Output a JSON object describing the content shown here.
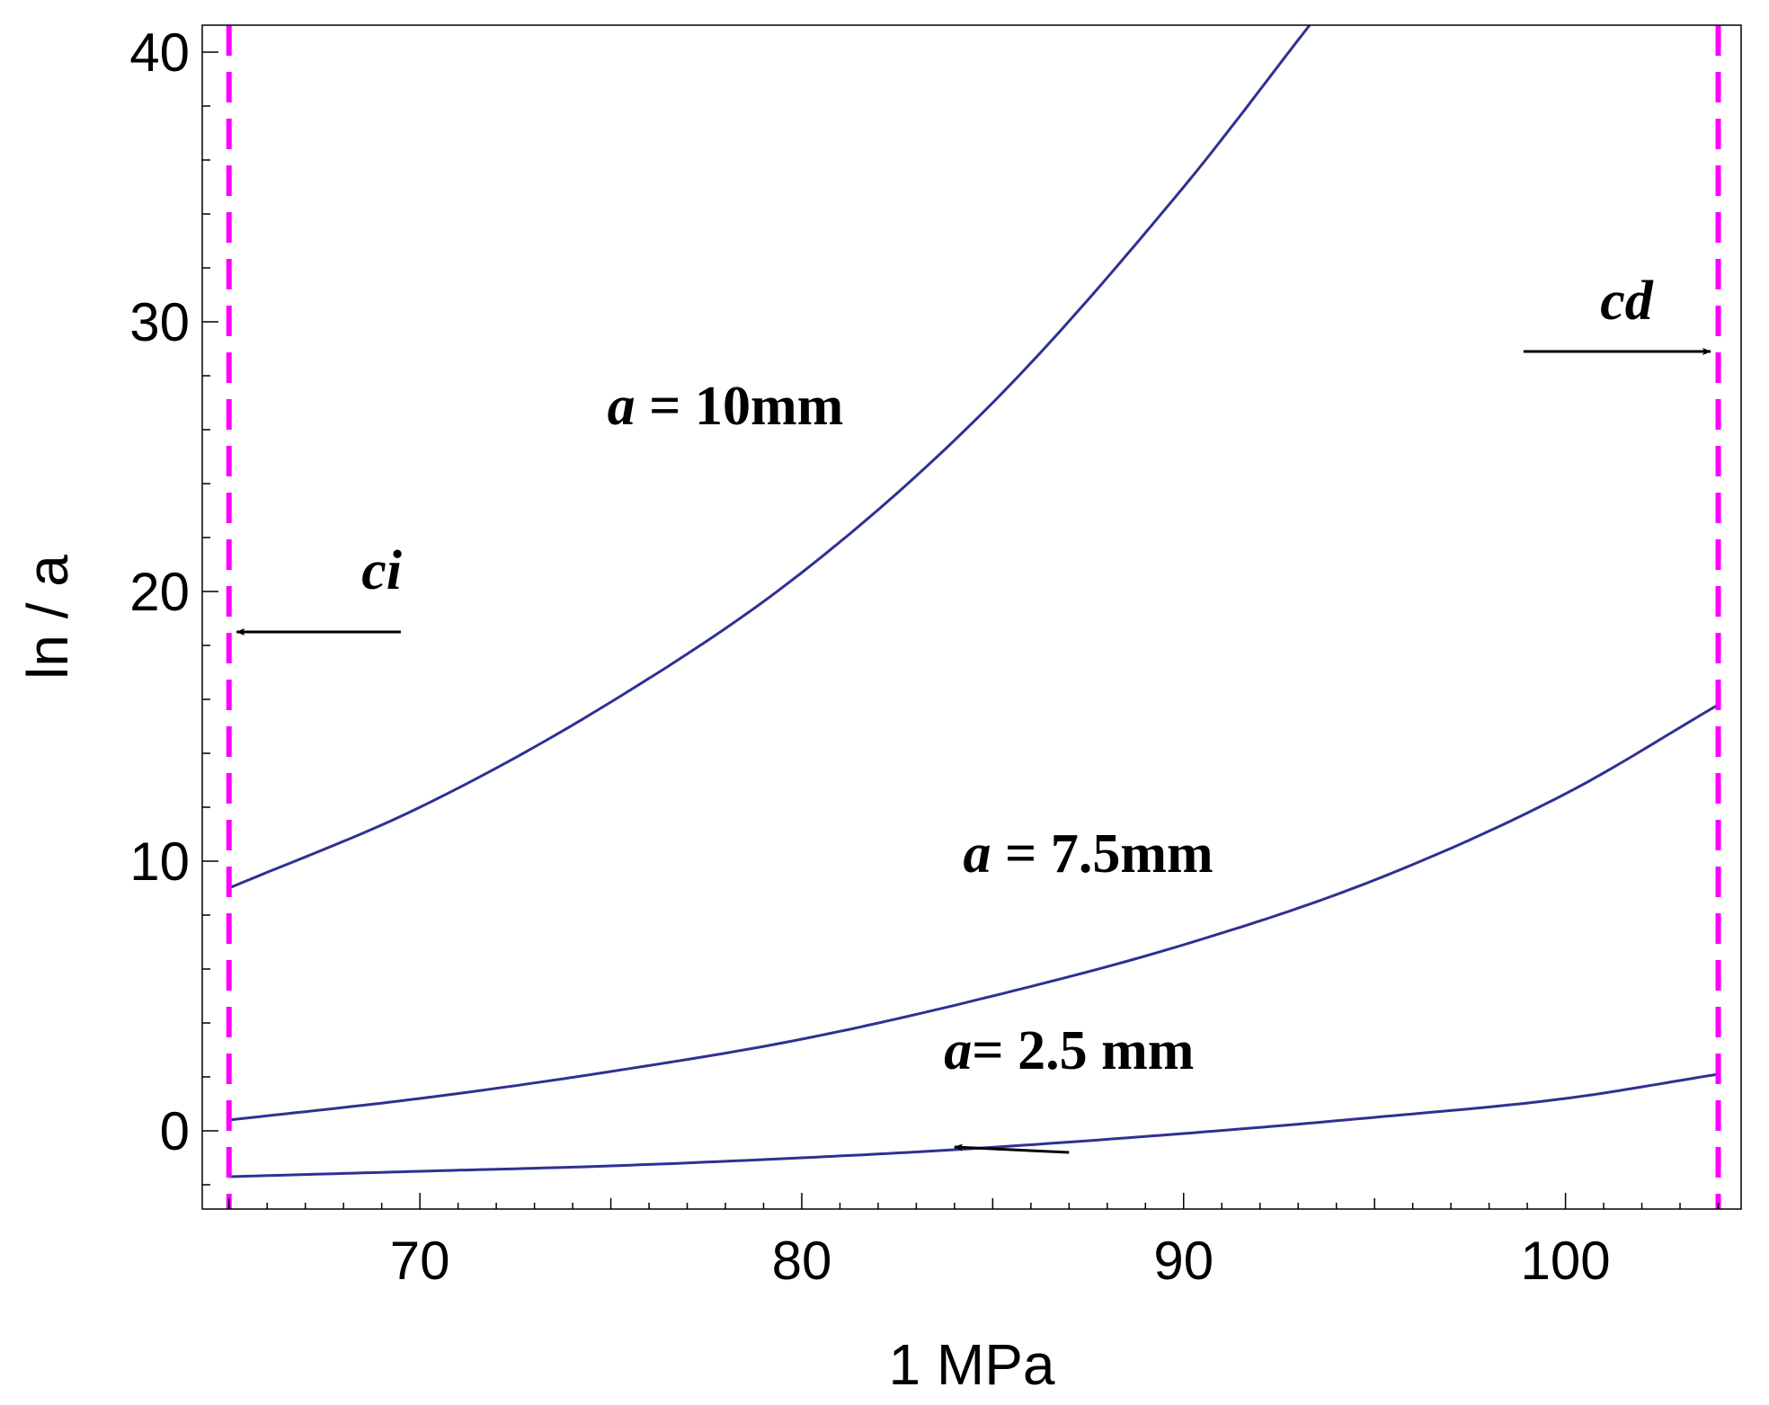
{
  "chart_data": {
    "type": "line",
    "title": "",
    "xlabel": "1 MPa",
    "ylabel": "ln / a",
    "xlim": [
      64.3,
      104.6
    ],
    "ylim": [
      -2.9,
      41
    ],
    "xticks": [
      70,
      80,
      90,
      100
    ],
    "yticks": [
      0,
      10,
      20,
      30,
      40
    ],
    "xtick_labels": [
      "70",
      "80",
      "90",
      "100"
    ],
    "ytick_labels": [
      "0",
      "10",
      "20",
      "30",
      "40"
    ],
    "grid": false,
    "colors": {
      "series": "#2e3192",
      "limits": "#ff00ff",
      "axes": "#000000"
    },
    "series": [
      {
        "name": "a = 10mm",
        "x": [
          65,
          70,
          75,
          80,
          85,
          90,
          93.3
        ],
        "y": [
          9.0,
          12.0,
          15.9,
          20.7,
          27.0,
          35.0,
          41.0
        ]
      },
      {
        "name": "a = 7.5mm",
        "x": [
          65,
          70,
          75,
          80,
          85,
          90,
          95,
          100,
          104
        ],
        "y": [
          0.4,
          1.2,
          2.2,
          3.4,
          5.0,
          6.9,
          9.3,
          12.5,
          15.8
        ]
      },
      {
        "name": "a= 2.5 mm",
        "x": [
          65,
          70,
          75,
          80,
          84,
          90,
          95,
          100,
          104
        ],
        "y": [
          -1.7,
          -1.5,
          -1.3,
          -1.0,
          -0.7,
          -0.1,
          0.5,
          1.2,
          2.1
        ]
      }
    ],
    "vlines": [
      {
        "x": 65,
        "style": "dashed",
        "label": "ci"
      },
      {
        "x": 104,
        "style": "dashed",
        "label": "cd"
      }
    ],
    "annotations": [
      {
        "text_main": "a",
        "text_rest": " = 10mm",
        "at": [
          78,
          26.2
        ]
      },
      {
        "text_main": "a",
        "text_rest": " = 7.5mm",
        "at": [
          87.5,
          9.6
        ]
      },
      {
        "text_main": "a",
        "text_rest": "= 2.5 mm",
        "at": [
          87,
          2.3
        ]
      },
      {
        "text_main": "ci",
        "text_rest": "",
        "at": [
          69,
          20.1
        ]
      },
      {
        "text_main": "cd",
        "text_rest": "",
        "at": [
          101.6,
          30.1
        ]
      }
    ],
    "arrows": [
      {
        "from": [
          69.5,
          18.5
        ],
        "to": [
          65.2,
          18.5
        ],
        "target": "ci"
      },
      {
        "from": [
          98.9,
          28.9
        ],
        "to": [
          103.8,
          28.9
        ],
        "target": "cd"
      },
      {
        "from": [
          87,
          -0.8
        ],
        "to": [
          84,
          -0.6
        ],
        "target": "a= 2.5 mm"
      }
    ]
  }
}
